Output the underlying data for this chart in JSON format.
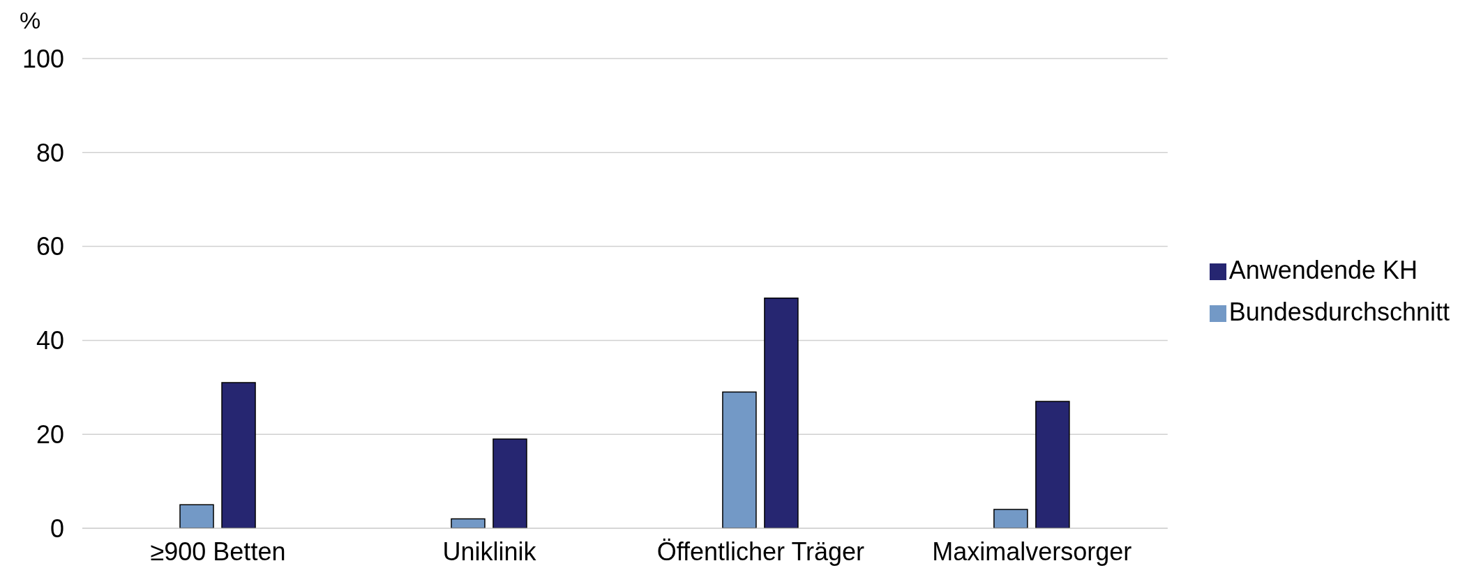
{
  "chart_data": {
    "type": "bar",
    "ylabel": "%",
    "categories": [
      "≥900 Betten",
      "Uniklinik",
      "Öffentlicher Träger",
      "Maximalversorger"
    ],
    "series": [
      {
        "name": "Bundesdurchschnitt",
        "color": "#7399c6",
        "values": [
          5,
          2,
          29,
          4
        ]
      },
      {
        "name": "Anwendende KH",
        "color": "#262671",
        "values": [
          31,
          19,
          49,
          27
        ]
      }
    ],
    "ylim": [
      0,
      100
    ],
    "yticks": [
      0,
      20,
      40,
      60,
      80,
      100
    ],
    "grid": "y",
    "legend": "right"
  }
}
